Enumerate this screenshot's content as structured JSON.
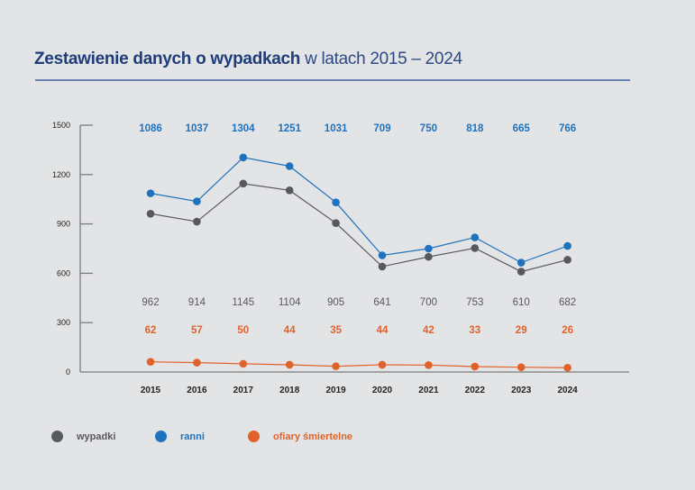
{
  "title": {
    "bold": "Zestawienie danych o wypadkach",
    "rest": " w latach 2015 – 2024"
  },
  "colors": {
    "wypadki": "#58595b",
    "ranni": "#1f72bd",
    "ofiary": "#e0622b",
    "axis": "#7a7b7d"
  },
  "chart_data": {
    "type": "line",
    "title": "Zestawienie danych o wypadkach w latach 2015 – 2024",
    "xlabel": "",
    "ylabel": "",
    "x": [
      "2015",
      "2016",
      "2017",
      "2018",
      "2019",
      "2020",
      "2021",
      "2022",
      "2023",
      "2024"
    ],
    "ylim": [
      0,
      1500
    ],
    "yticks": [
      "0",
      "300",
      "600",
      "900",
      "1200",
      "1500"
    ],
    "grid": false,
    "legend_position": "bottom-left",
    "series": [
      {
        "key": "wypadki",
        "name": "wypadki",
        "values": [
          962,
          914,
          1145,
          1104,
          905,
          641,
          700,
          753,
          610,
          682
        ],
        "labels": [
          "962",
          "914",
          "1145",
          "1104",
          "905",
          "641",
          "700",
          "753",
          "610",
          "682"
        ]
      },
      {
        "key": "ranni",
        "name": "ranni",
        "values": [
          1086,
          1037,
          1304,
          1251,
          1031,
          709,
          750,
          818,
          665,
          766
        ],
        "labels": [
          "1086",
          "1037",
          "1304",
          "1251",
          "1031",
          "709",
          "750",
          "818",
          "665",
          "766"
        ]
      },
      {
        "key": "ofiary",
        "name": "ofiary śmiertelne",
        "values": [
          62,
          57,
          50,
          44,
          35,
          44,
          42,
          33,
          29,
          26
        ],
        "labels": [
          "62",
          "57",
          "50",
          "44",
          "35",
          "44",
          "42",
          "33",
          "29",
          "26"
        ]
      }
    ]
  },
  "legend": [
    {
      "key": "wypadki",
      "label": "wypadki"
    },
    {
      "key": "ranni",
      "label": "ranni"
    },
    {
      "key": "ofiary",
      "label": "ofiary śmiertelne"
    }
  ]
}
